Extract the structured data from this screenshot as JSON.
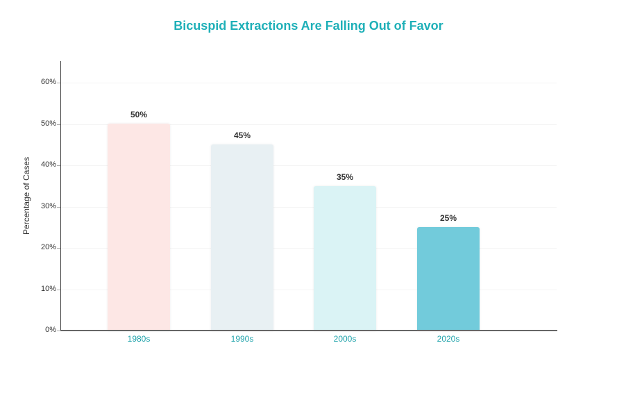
{
  "chart_data": {
    "type": "bar",
    "title": "Bicuspid Extractions Are Falling Out of Favor",
    "xlabel": "",
    "ylabel": "Percentage of Cases",
    "categories": [
      "1980s",
      "1990s",
      "2000s",
      "2020s"
    ],
    "values": [
      50,
      45,
      35,
      25
    ],
    "value_labels": [
      "50%",
      "45%",
      "35%",
      "25%"
    ],
    "bar_colors": [
      "#fde7e5",
      "#e8f0f3",
      "#daf3f5",
      "#72cbdb"
    ],
    "ylim": [
      0,
      65
    ],
    "yticks": [
      0,
      10,
      20,
      30,
      40,
      50,
      60
    ],
    "ytick_labels": [
      "0%",
      "10%",
      "20%",
      "30%",
      "40%",
      "50%",
      "60%"
    ],
    "grid": true,
    "legend": null
  },
  "colors": {
    "title": "#1fb0b8",
    "xtick_label": "#1fa3ab"
  }
}
